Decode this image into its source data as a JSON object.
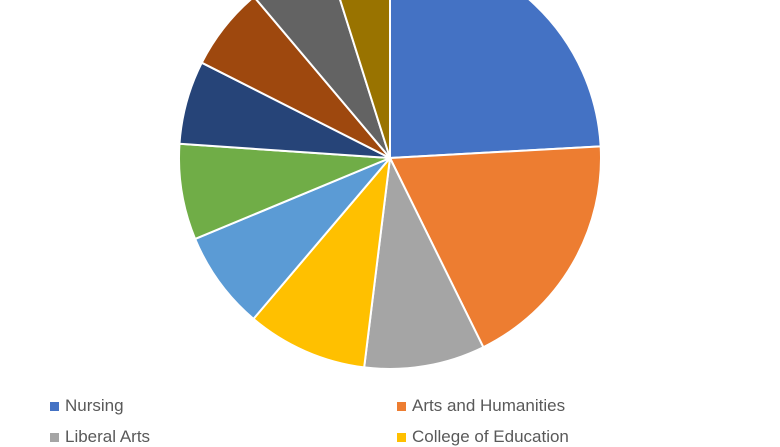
{
  "chart_data": {
    "type": "pie",
    "categories": [
      "Nursing",
      "Arts and Humanities",
      "Liberal Arts",
      "College of Education",
      "",
      "",
      "",
      "",
      "",
      ""
    ],
    "values": [
      25.3,
      19.5,
      9.7,
      9.7,
      7.9,
      7.7,
      6.7,
      6.7,
      6.6,
      5.1
    ],
    "colors": [
      "#4472C4",
      "#ED7D31",
      "#A5A5A5",
      "#FFC000",
      "#5B9BD5",
      "#70AD47",
      "#264478",
      "#9E480E",
      "#636363",
      "#997300"
    ],
    "legend": {
      "position": "bottom"
    }
  }
}
